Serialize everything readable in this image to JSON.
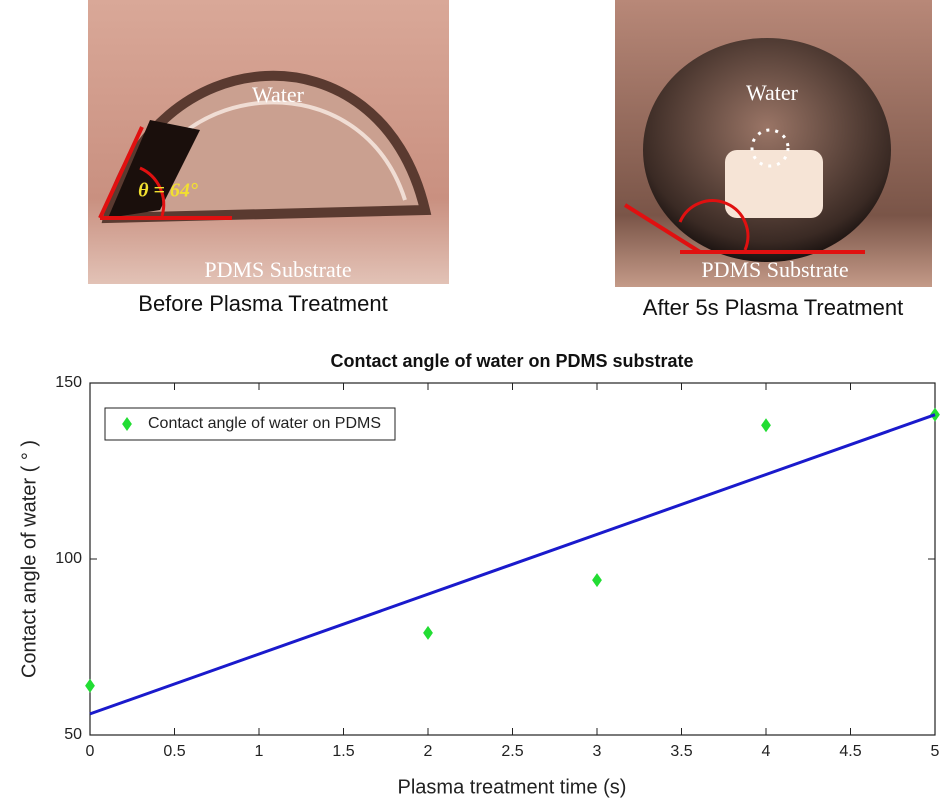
{
  "photos": [
    {
      "caption": "Before Plasma Treatment",
      "labels": [
        "Water",
        "θ = 64°",
        "PDMS Substrate"
      ]
    },
    {
      "caption": "After 5s Plasma Treatment",
      "labels": [
        "Water",
        "PDMS Substrate"
      ]
    }
  ],
  "chart_data": {
    "type": "scatter",
    "title": "Contact angle of water on PDMS substrate",
    "xlabel": "Plasma treatment time (s)",
    "ylabel": "Contact angle of water ( ° )",
    "xlim": [
      0,
      5
    ],
    "ylim": [
      50,
      150
    ],
    "xticks": [
      0,
      0.5,
      1,
      1.5,
      2,
      2.5,
      3,
      3.5,
      4,
      4.5,
      5
    ],
    "yticks": [
      50,
      100,
      150
    ],
    "legend": "upper left",
    "series": [
      {
        "name": "Contact angle of water on PDMS",
        "type": "scatter",
        "marker": "diamond",
        "color": "#22dd33",
        "x": [
          0,
          2,
          3,
          4,
          5
        ],
        "values": [
          64,
          79,
          94,
          138,
          141
        ]
      },
      {
        "type": "line",
        "color": "#1a1acc",
        "x": [
          0,
          5
        ],
        "values": [
          56,
          141
        ]
      }
    ]
  }
}
